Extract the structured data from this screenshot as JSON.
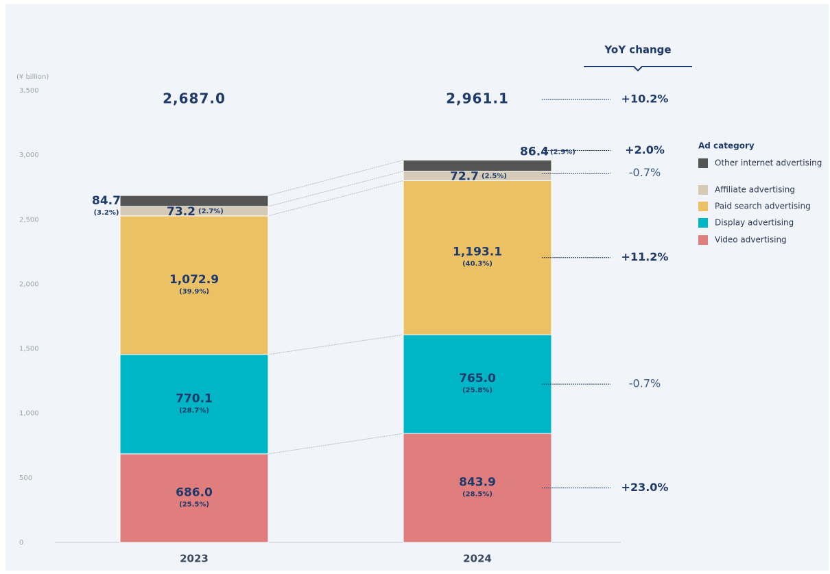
{
  "chart_data": {
    "type": "stacked_bar",
    "y_label": "(¥ billion)",
    "categories": [
      "2023",
      "2024"
    ],
    "ylim": [
      0,
      3500
    ],
    "yticks": [
      0,
      500,
      {
        "value": 1000,
        "label": "1,000"
      },
      {
        "value": 1500,
        "label": "1,500"
      },
      {
        "value": 2000,
        "label": "2,000"
      },
      {
        "value": 2500,
        "label": "2,500"
      },
      {
        "value": 3000,
        "label": "3,000"
      },
      {
        "value": 3500,
        "label": "3,500"
      }
    ],
    "totals": [
      2687.0,
      2961.1
    ],
    "total_labels": [
      "2,687.0",
      "2,961.1"
    ],
    "yoy_title": "YoY change",
    "total_yoy_label": "+10.2%",
    "legend_title": "Ad category",
    "series": [
      {
        "name": "Video advertising",
        "color": "#e07e7e",
        "values": [
          686.0,
          843.9
        ],
        "value_labels": [
          "686.0",
          "843.9"
        ],
        "share_labels": [
          "(25.5%)",
          "(28.5%)"
        ],
        "yoy_label": "+23.0%"
      },
      {
        "name": "Display advertising",
        "color": "#00b5c5",
        "values": [
          770.1,
          765.0
        ],
        "value_labels": [
          "770.1",
          "765.0"
        ],
        "share_labels": [
          "(28.7%)",
          "(25.8%)"
        ],
        "yoy_label": "-0.7%"
      },
      {
        "name": "Paid search advertising",
        "color": "#ecc064",
        "values": [
          1072.9,
          1193.1
        ],
        "value_labels": [
          "1,072.9",
          "1,193.1"
        ],
        "share_labels": [
          "(39.9%)",
          "(40.3%)"
        ],
        "yoy_label": "+11.2%"
      },
      {
        "name": "Affiliate advertising",
        "color": "#d4cab6",
        "values": [
          73.2,
          72.7
        ],
        "value_labels": [
          "73.2",
          "72.7"
        ],
        "share_labels": [
          "(2.7%)",
          "(2.5%)"
        ],
        "yoy_label": "-0.7%"
      },
      {
        "name": "Other internet advertising",
        "color": "#555555",
        "values": [
          84.7,
          86.4
        ],
        "value_labels": [
          "84.7",
          "86.4"
        ],
        "share_labels": [
          "(3.2%)",
          "(2.9%)"
        ],
        "yoy_label": "+2.0%"
      }
    ]
  }
}
